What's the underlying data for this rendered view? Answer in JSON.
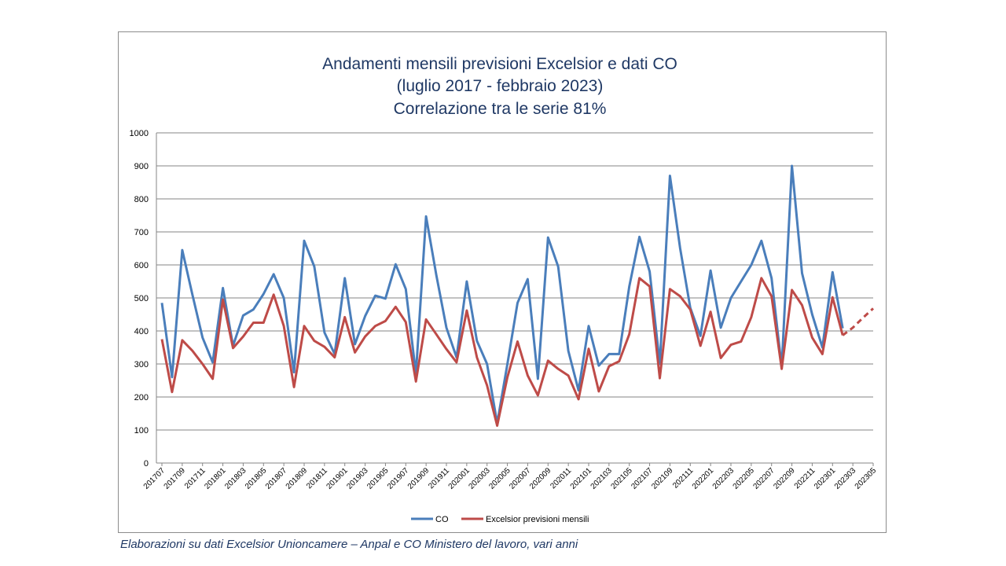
{
  "caption": "Elaborazioni su dati Excelsior Unioncamere – Anpal e CO Ministero del lavoro, vari anni",
  "chart_data": {
    "type": "line",
    "title_lines": [
      "Andamenti mensili previsioni Excelsior e dati CO",
      "(luglio 2017 - febbraio 2023)",
      "Correlazione tra le serie 81%"
    ],
    "xlabel": "",
    "ylabel": "",
    "ylim": [
      0,
      1000
    ],
    "yticks": [
      0,
      100,
      200,
      300,
      400,
      500,
      600,
      700,
      800,
      900,
      1000
    ],
    "grid": true,
    "legend_position": "bottom",
    "x": [
      "201707",
      "201708",
      "201709",
      "201710",
      "201711",
      "201712",
      "201801",
      "201802",
      "201803",
      "201804",
      "201805",
      "201806",
      "201807",
      "201808",
      "201809",
      "201810",
      "201811",
      "201812",
      "201901",
      "201902",
      "201903",
      "201904",
      "201905",
      "201906",
      "201907",
      "201908",
      "201909",
      "201910",
      "201911",
      "201912",
      "202001",
      "202002",
      "202003",
      "202004",
      "202005",
      "202006",
      "202007",
      "202008",
      "202009",
      "202010",
      "202011",
      "202012",
      "202101",
      "202102",
      "202103",
      "202104",
      "202105",
      "202106",
      "202107",
      "202108",
      "202109",
      "202110",
      "202111",
      "202112",
      "202201",
      "202202",
      "202203",
      "202204",
      "202205",
      "202206",
      "202207",
      "202208",
      "202209",
      "202210",
      "202211",
      "202212",
      "202301",
      "202302",
      "202303",
      "202304",
      "202305"
    ],
    "x_tick_labels": [
      "201707",
      "201709",
      "201711",
      "201801",
      "201803",
      "201805",
      "201807",
      "201809",
      "201811",
      "201901",
      "201903",
      "201905",
      "201907",
      "201909",
      "201911",
      "202001",
      "202003",
      "202005",
      "202007",
      "202009",
      "202011",
      "202101",
      "202103",
      "202105",
      "202107",
      "202109",
      "202111",
      "202201",
      "202203",
      "202205",
      "202207",
      "202209",
      "202211",
      "202301",
      "202303",
      "202305"
    ],
    "series": [
      {
        "name": "CO",
        "color": "#4a7ebb",
        "dashed": false,
        "values": [
          485,
          260,
          645,
          510,
          380,
          305,
          530,
          355,
          447,
          465,
          512,
          572,
          500,
          275,
          673,
          595,
          395,
          330,
          560,
          360,
          445,
          507,
          498,
          602,
          527,
          270,
          747,
          570,
          410,
          320,
          550,
          370,
          300,
          120,
          300,
          485,
          557,
          255,
          683,
          595,
          340,
          220,
          415,
          295,
          330,
          330,
          535,
          685,
          580,
          300,
          870,
          650,
          470,
          385,
          583,
          410,
          500,
          550,
          600,
          673,
          560,
          290,
          900,
          575,
          450,
          350,
          578,
          408,
          null,
          null,
          null
        ]
      },
      {
        "name": "Excelsior previsioni mensili",
        "color": "#be4b48",
        "dashed": false,
        "values": [
          375,
          215,
          372,
          340,
          300,
          255,
          495,
          348,
          383,
          425,
          425,
          510,
          415,
          230,
          415,
          370,
          352,
          320,
          442,
          335,
          383,
          415,
          430,
          473,
          427,
          247,
          435,
          390,
          345,
          305,
          462,
          320,
          235,
          113,
          260,
          368,
          265,
          205,
          310,
          285,
          265,
          193,
          346,
          217,
          293,
          308,
          390,
          560,
          535,
          257,
          527,
          505,
          465,
          355,
          458,
          318,
          358,
          368,
          442,
          560,
          505,
          285,
          524,
          478,
          380,
          330,
          502,
          387,
          null,
          null,
          null
        ]
      },
      {
        "name": "",
        "color": "#be4b48",
        "dashed": true,
        "values": [
          null,
          null,
          null,
          null,
          null,
          null,
          null,
          null,
          null,
          null,
          null,
          null,
          null,
          null,
          null,
          null,
          null,
          null,
          null,
          null,
          null,
          null,
          null,
          null,
          null,
          null,
          null,
          null,
          null,
          null,
          null,
          null,
          null,
          null,
          null,
          null,
          null,
          null,
          null,
          null,
          null,
          null,
          null,
          null,
          null,
          null,
          null,
          null,
          null,
          null,
          null,
          null,
          null,
          null,
          null,
          null,
          null,
          null,
          null,
          null,
          null,
          null,
          null,
          null,
          null,
          null,
          null,
          null,
          410,
          440,
          468
        ]
      }
    ],
    "legend": [
      {
        "label": "CO",
        "color": "#4a7ebb"
      },
      {
        "label": "Excelsior previsioni mensili",
        "color": "#be4b48"
      }
    ]
  }
}
